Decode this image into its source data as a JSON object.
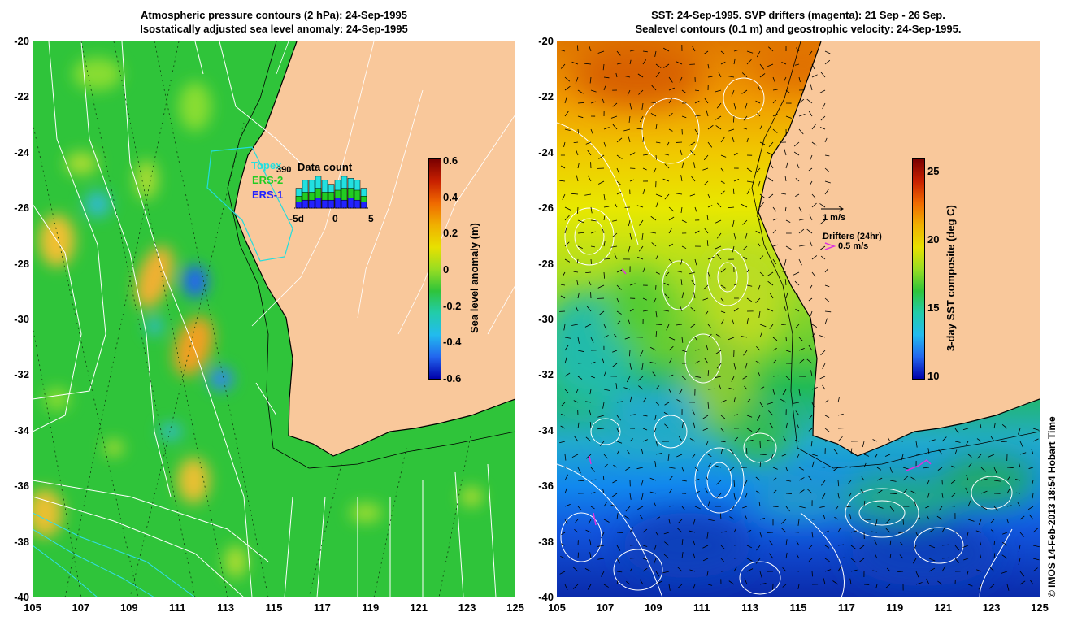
{
  "left_panel": {
    "title_line1": "Atmospheric pressure contours (2 hPa): 24-Sep-1995",
    "title_line2": "Isostatically adjusted sea level anomaly: 24-Sep-1995",
    "colorbar": {
      "title": "Sea level anomaly (m)",
      "ticks": [
        "0.6",
        "0.4",
        "0.2",
        "0",
        "-0.2",
        "-0.4",
        "-0.6"
      ]
    },
    "datacount": {
      "title": "Data count",
      "value": "390",
      "legend": [
        {
          "label": "Topex",
          "color": "#22e0e0"
        },
        {
          "label": "ERS-2",
          "color": "#22cc22"
        },
        {
          "label": "ERS-1",
          "color": "#2222ff"
        }
      ],
      "xticks": [
        "-5d",
        "0",
        "5"
      ],
      "bars": [
        {
          "total": 5,
          "green": 3,
          "blue": 1.5
        },
        {
          "total": 7,
          "green": 4,
          "blue": 2
        },
        {
          "total": 7,
          "green": 4,
          "blue": 2
        },
        {
          "total": 8,
          "green": 5,
          "blue": 2.5
        },
        {
          "total": 7,
          "green": 4,
          "blue": 2
        },
        {
          "total": 6,
          "green": 4,
          "blue": 2
        },
        {
          "total": 7,
          "green": 4.5,
          "blue": 2.5
        },
        {
          "total": 8,
          "green": 5,
          "blue": 2
        },
        {
          "total": 7.5,
          "green": 5,
          "blue": 2.5
        },
        {
          "total": 7,
          "green": 4.5,
          "blue": 2
        },
        {
          "total": 5,
          "green": 3,
          "blue": 1.5
        }
      ]
    }
  },
  "right_panel": {
    "title_line1": "SST: 24-Sep-1995. SVP drifters (magenta): 21 Sep - 26 Sep.",
    "title_line2": "Sealevel contours (0.1 m) and geostrophic velocity: 24-Sep-1995.",
    "colorbar": {
      "title": "3-day SST composite (deg C)",
      "ticks": [
        "25",
        "20",
        "15",
        "10"
      ]
    },
    "velocity_legend": "1 m/s",
    "drifters_legend_title": "Drifters (24hr)",
    "drifters_legend_scale": "0.5 m/s"
  },
  "axes": {
    "lat_ticks": [
      "-20",
      "-22",
      "-24",
      "-26",
      "-28",
      "-30",
      "-32",
      "-34",
      "-36",
      "-38",
      "-40"
    ],
    "lon_ticks": [
      "105",
      "107",
      "109",
      "111",
      "113",
      "115",
      "117",
      "119",
      "121",
      "123",
      "125"
    ]
  },
  "credit": "© IMOS 14-Feb-2013 18:54 Hobart Time",
  "colors": {
    "land": "#f9c89b",
    "ocean_base_left": "#2fc43a",
    "coast": "#000000",
    "contours": "#ffffff",
    "drifters": "#dd33dd"
  }
}
